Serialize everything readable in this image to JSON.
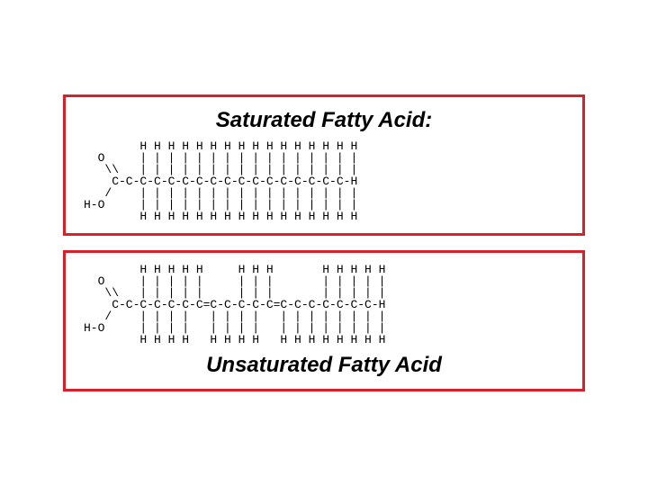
{
  "border_color": "#d8202a",
  "text_color": "#000000",
  "title_font_size": 24,
  "mono_font_size": 13,
  "saturated": {
    "title": "Saturated Fatty Acid:",
    "lines": [
      "        H H H H H H H H H H H H H H H H",
      "  O     | | | | | | | | | | | | | | | |",
      "   \\\\   | | | | | | | | | | | | | | | |",
      "    C-C-C-C-C-C-C-C-C-C-C-C-C-C-C-C-C-H",
      "   /    | | | | | | | | | | | | | | | |",
      "H-O     | | | | | | | | | | | | | | | |",
      "        H H H H H H H H H H H H H H H H"
    ]
  },
  "unsaturated": {
    "title": "Unsaturated Fatty Acid",
    "lines": [
      "        H H H H H     H H H       H H H H H",
      "  O     | | | | |     | | |       | | | | |",
      "   \\\\   | | | | |     | | |       | | | | |",
      "    C-C-C-C-C-C-C=C-C-C-C-C=C-C-C-C-C-C-C-H",
      "   /    | | | |   | | | |   | | | | | | | |",
      "H-O     | | | |   | | | |   | | | | | | | |",
      "        H H H H   H H H H   H H H H H H H H"
    ]
  }
}
